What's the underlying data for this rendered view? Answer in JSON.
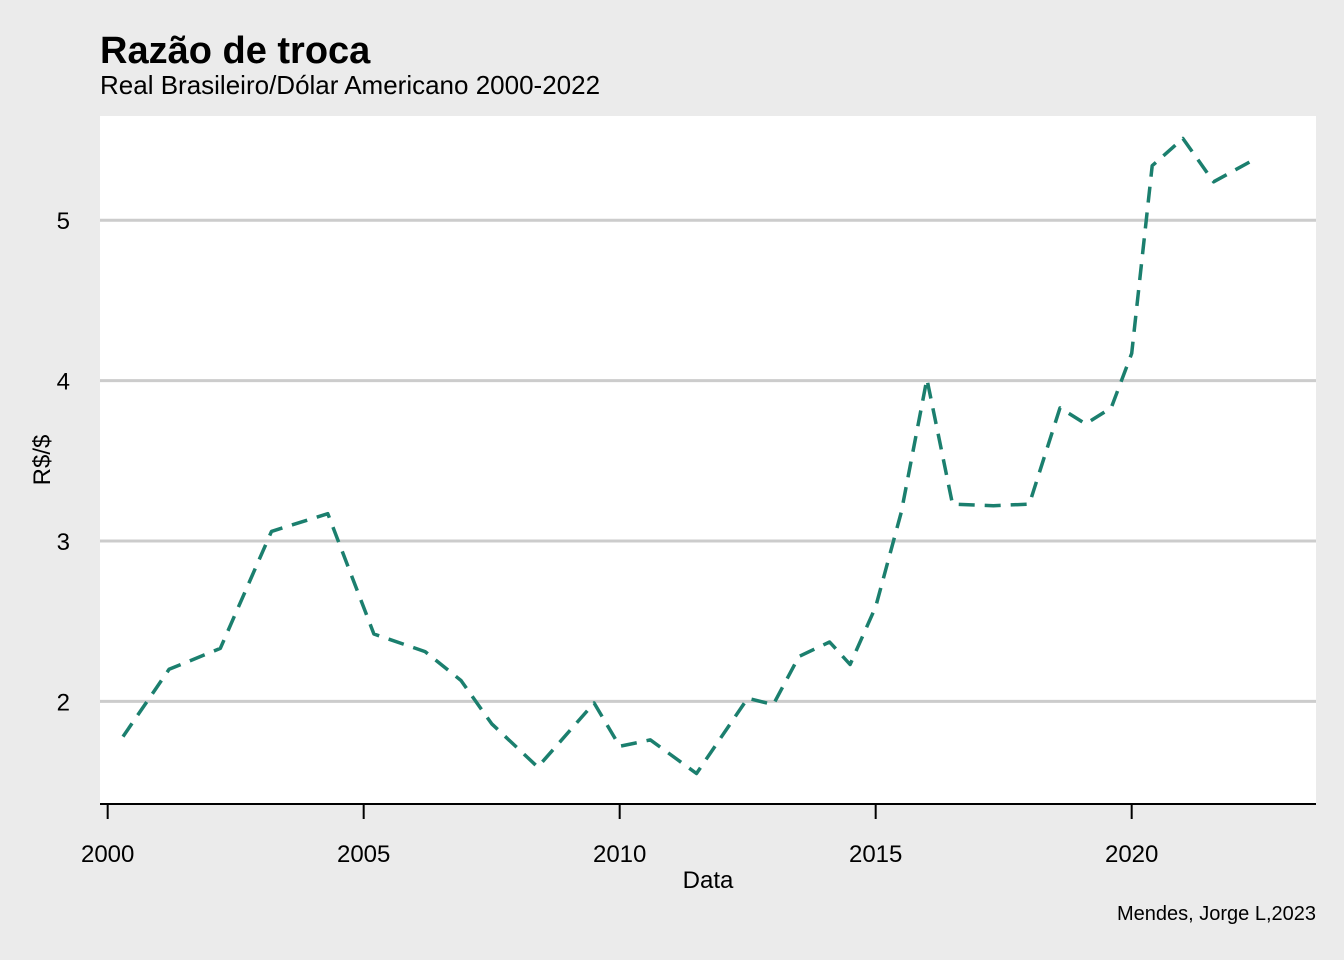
{
  "chart_data": {
    "type": "line",
    "title": "Razão de troca",
    "subtitle": "Real Brasileiro/Dólar Americano 2000-2022",
    "caption": "Mendes, Jorge L,2023",
    "xlabel": "Data",
    "ylabel": "R$/$",
    "xlim": [
      1999.85,
      2023.6
    ],
    "ylim": [
      1.36,
      5.65
    ],
    "x_ticks": [
      2000,
      2005,
      2010,
      2015,
      2020
    ],
    "y_ticks": [
      2,
      3,
      4,
      5
    ],
    "grid": "horizontal-major",
    "line_style": "dashed",
    "line_color": "#1b7f6e",
    "plot_background": "#ffffff",
    "page_background": "#ebebeb",
    "gridline_color": "#cccccc",
    "series": [
      {
        "x": [
          2000.3,
          2001.2,
          2002.2,
          2003.2,
          2004.3,
          2005.2,
          2006.2,
          2006.9,
          2007.5,
          2008.4,
          2009.5,
          2010.0,
          2010.6,
          2011.5,
          2012.5,
          2013.0,
          2013.5,
          2014.1,
          2014.5,
          2015.0,
          2015.5,
          2016.0,
          2016.5,
          2017.3,
          2018.0,
          2018.6,
          2019.1,
          2019.6,
          2020.0,
          2020.4,
          2021.0,
          2021.6,
          2022.4
        ],
        "y": [
          1.78,
          2.2,
          2.33,
          3.06,
          3.17,
          2.42,
          2.31,
          2.13,
          1.86,
          1.59,
          1.99,
          1.72,
          1.76,
          1.55,
          2.02,
          1.98,
          2.28,
          2.37,
          2.23,
          2.59,
          3.18,
          4.01,
          3.23,
          3.22,
          3.23,
          3.83,
          3.73,
          3.83,
          4.17,
          5.34,
          5.51,
          5.24,
          5.38
        ]
      }
    ]
  }
}
